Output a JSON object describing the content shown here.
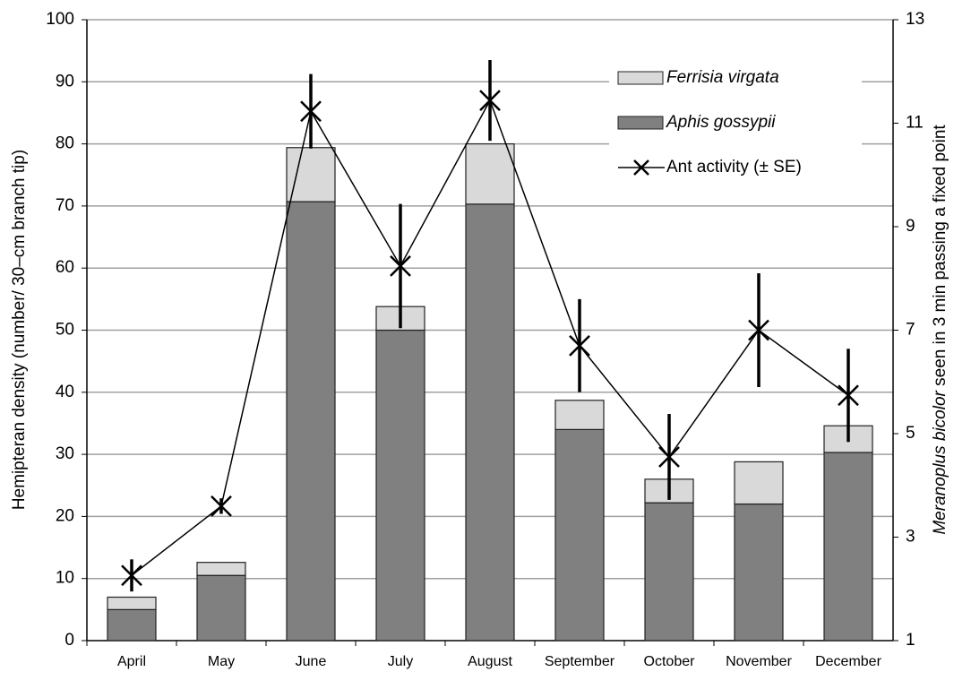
{
  "chart_data": {
    "type": "bar",
    "ylabel": "Hemipteran density (number/ 30–cm branch tip)",
    "y2label": {
      "species": "Meranoplus bicolor",
      "text": " seen in 3 min passing a fixed point"
    },
    "categories": [
      "April",
      "May",
      "June",
      "July",
      "August",
      "September",
      "October",
      "November",
      "December"
    ],
    "series": [
      {
        "name": "Aphis gossypii",
        "color": "#808080",
        "stacked": true,
        "values": [
          5,
          10.5,
          70.7,
          50,
          70.3,
          34,
          22.2,
          22,
          30.3
        ]
      },
      {
        "name": "Ferrisia virgata",
        "color": "#d9d9d9",
        "stacked": true,
        "values": [
          2,
          2.1,
          8.7,
          3.8,
          9.7,
          4.7,
          3.8,
          6.8,
          4.3
        ]
      },
      {
        "name": "Ant activity (± SE)",
        "type": "line",
        "axis": "y2",
        "color": "#000000",
        "values": [
          2.26,
          3.6,
          11.23,
          8.24,
          11.44,
          6.7,
          4.55,
          7.0,
          5.74
        ],
        "errors": [
          0.31,
          0.15,
          0.72,
          1.2,
          0.78,
          0.9,
          0.83,
          1.1,
          0.9
        ]
      }
    ],
    "ylim": [
      0,
      100
    ],
    "yticks": [
      0,
      10,
      20,
      30,
      40,
      50,
      60,
      70,
      80,
      90,
      100
    ],
    "y2lim": [
      1,
      13
    ],
    "y2ticks": [
      1,
      3,
      5,
      7,
      9,
      11,
      13
    ],
    "grid": true,
    "legend": "upper right"
  }
}
